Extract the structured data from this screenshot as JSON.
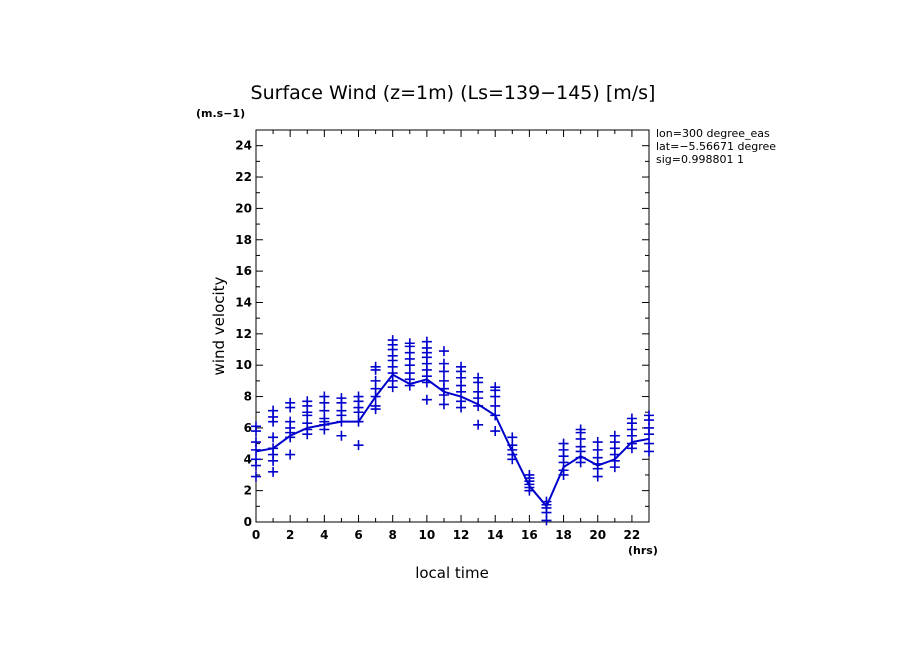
{
  "chart_data": {
    "type": "line",
    "title": "Surface Wind (z=1m) (Ls=139−145) [m/s]",
    "y_unit": "(m.s−1)",
    "x_unit": "(hrs)",
    "xlabel": "local time",
    "ylabel": "wind velocity",
    "xlim": [
      0,
      23
    ],
    "ylim": [
      0,
      25
    ],
    "x_tick_values": [
      0,
      2,
      4,
      6,
      8,
      10,
      12,
      14,
      16,
      18,
      20,
      22
    ],
    "x_tick_labels": [
      "0",
      "2",
      "4",
      "6",
      "8",
      "10",
      "12",
      "14",
      "16",
      "18",
      "20",
      "22"
    ],
    "y_tick_values": [
      0,
      2,
      4,
      6,
      8,
      10,
      12,
      14,
      16,
      18,
      20,
      22,
      24
    ],
    "y_tick_labels": [
      "0",
      "2",
      "4",
      "6",
      "8",
      "10",
      "12",
      "14",
      "16",
      "18",
      "20",
      "22",
      "24"
    ],
    "annotations": [
      "lon=300 degree_eas",
      "lat=−5.56671 degree",
      "sig=0.998801 1"
    ],
    "color": "#0000cc",
    "mean_series": {
      "x": [
        0,
        1,
        2,
        3,
        4,
        5,
        6,
        7,
        8,
        9,
        10,
        11,
        12,
        13,
        14,
        15,
        16,
        17,
        18,
        19,
        20,
        21,
        22,
        23
      ],
      "values": [
        4.5,
        4.7,
        5.5,
        6.0,
        6.2,
        6.4,
        6.4,
        8.0,
        9.4,
        8.8,
        9.1,
        8.3,
        8.0,
        7.5,
        6.8,
        4.5,
        2.3,
        1.0,
        3.5,
        4.2,
        3.6,
        4.0,
        5.1,
        5.3
      ],
      "marker": "line"
    },
    "scatter_series": {
      "marker": "plus",
      "points": [
        [
          0,
          2.9
        ],
        [
          0,
          3.6
        ],
        [
          0,
          4.0
        ],
        [
          0,
          4.6
        ],
        [
          0,
          5.1
        ],
        [
          0,
          5.8
        ],
        [
          0,
          6.1
        ],
        [
          1,
          3.2
        ],
        [
          1,
          3.9
        ],
        [
          1,
          4.3
        ],
        [
          1,
          4.7
        ],
        [
          1,
          5.4
        ],
        [
          1,
          6.4
        ],
        [
          1,
          6.7
        ],
        [
          1,
          7.1
        ],
        [
          2,
          4.3
        ],
        [
          2,
          5.4
        ],
        [
          2,
          5.7
        ],
        [
          2,
          6.0
        ],
        [
          2,
          6.4
        ],
        [
          2,
          7.3
        ],
        [
          2,
          7.6
        ],
        [
          3,
          5.6
        ],
        [
          3,
          5.9
        ],
        [
          3,
          6.3
        ],
        [
          3,
          6.8
        ],
        [
          3,
          7.0
        ],
        [
          3,
          7.4
        ],
        [
          3,
          7.7
        ],
        [
          4,
          5.9
        ],
        [
          4,
          6.2
        ],
        [
          4,
          6.4
        ],
        [
          4,
          6.6
        ],
        [
          4,
          7.1
        ],
        [
          4,
          7.6
        ],
        [
          4,
          8.0
        ],
        [
          5,
          5.5
        ],
        [
          5,
          6.4
        ],
        [
          5,
          6.8
        ],
        [
          5,
          7.1
        ],
        [
          5,
          7.6
        ],
        [
          5,
          7.9
        ],
        [
          6,
          4.9
        ],
        [
          6,
          6.4
        ],
        [
          6,
          7.0
        ],
        [
          6,
          7.3
        ],
        [
          6,
          7.7
        ],
        [
          6,
          8.0
        ],
        [
          7,
          7.2
        ],
        [
          7,
          7.4
        ],
        [
          7,
          8.0
        ],
        [
          7,
          8.5
        ],
        [
          7,
          9.0
        ],
        [
          7,
          9.7
        ],
        [
          7,
          9.9
        ],
        [
          8,
          8.6
        ],
        [
          8,
          9.0
        ],
        [
          8,
          9.5
        ],
        [
          8,
          9.9
        ],
        [
          8,
          10.3
        ],
        [
          8,
          10.6
        ],
        [
          8,
          11.0
        ],
        [
          8,
          11.3
        ],
        [
          8,
          11.6
        ],
        [
          9,
          8.7
        ],
        [
          9,
          9.1
        ],
        [
          9,
          9.5
        ],
        [
          9,
          10.0
        ],
        [
          9,
          10.4
        ],
        [
          9,
          10.8
        ],
        [
          9,
          11.2
        ],
        [
          9,
          11.4
        ],
        [
          10,
          7.8
        ],
        [
          10,
          8.9
        ],
        [
          10,
          9.3
        ],
        [
          10,
          9.7
        ],
        [
          10,
          10.1
        ],
        [
          10,
          10.5
        ],
        [
          10,
          10.8
        ],
        [
          10,
          11.1
        ],
        [
          10,
          11.5
        ],
        [
          11,
          7.5
        ],
        [
          11,
          8.1
        ],
        [
          11,
          8.5
        ],
        [
          11,
          9.0
        ],
        [
          11,
          9.6
        ],
        [
          11,
          10.1
        ],
        [
          11,
          10.9
        ],
        [
          12,
          7.3
        ],
        [
          12,
          7.7
        ],
        [
          12,
          8.3
        ],
        [
          12,
          8.7
        ],
        [
          12,
          9.2
        ],
        [
          12,
          9.6
        ],
        [
          12,
          9.9
        ],
        [
          13,
          6.2
        ],
        [
          13,
          7.4
        ],
        [
          13,
          7.9
        ],
        [
          13,
          8.3
        ],
        [
          13,
          8.9
        ],
        [
          13,
          9.2
        ],
        [
          14,
          5.8
        ],
        [
          14,
          6.8
        ],
        [
          14,
          7.4
        ],
        [
          14,
          8.0
        ],
        [
          14,
          8.4
        ],
        [
          14,
          8.6
        ],
        [
          15,
          4.0
        ],
        [
          15,
          4.3
        ],
        [
          15,
          4.6
        ],
        [
          15,
          4.9
        ],
        [
          15,
          5.4
        ],
        [
          16,
          2.0
        ],
        [
          16,
          2.2
        ],
        [
          16,
          2.4
        ],
        [
          16,
          2.6
        ],
        [
          16,
          2.8
        ],
        [
          16,
          3.0
        ],
        [
          17,
          0.1
        ],
        [
          17,
          0.6
        ],
        [
          17,
          0.9
        ],
        [
          17,
          1.1
        ],
        [
          17,
          1.3
        ],
        [
          18,
          3.0
        ],
        [
          18,
          3.3
        ],
        [
          18,
          3.8
        ],
        [
          18,
          4.2
        ],
        [
          18,
          4.6
        ],
        [
          18,
          5.0
        ],
        [
          19,
          3.8
        ],
        [
          19,
          4.1
        ],
        [
          19,
          4.5
        ],
        [
          19,
          4.8
        ],
        [
          19,
          5.3
        ],
        [
          19,
          5.7
        ],
        [
          19,
          5.9
        ],
        [
          20,
          2.9
        ],
        [
          20,
          3.4
        ],
        [
          20,
          3.7
        ],
        [
          20,
          4.1
        ],
        [
          20,
          4.6
        ],
        [
          20,
          5.1
        ],
        [
          21,
          3.5
        ],
        [
          21,
          3.9
        ],
        [
          21,
          4.3
        ],
        [
          21,
          4.7
        ],
        [
          21,
          5.1
        ],
        [
          21,
          5.5
        ],
        [
          22,
          4.7
        ],
        [
          22,
          5.0
        ],
        [
          22,
          5.5
        ],
        [
          22,
          5.9
        ],
        [
          22,
          6.3
        ],
        [
          22,
          6.6
        ],
        [
          23,
          4.5
        ],
        [
          23,
          5.0
        ],
        [
          23,
          5.6
        ],
        [
          23,
          6.0
        ],
        [
          23,
          6.5
        ],
        [
          23,
          6.8
        ]
      ]
    }
  }
}
